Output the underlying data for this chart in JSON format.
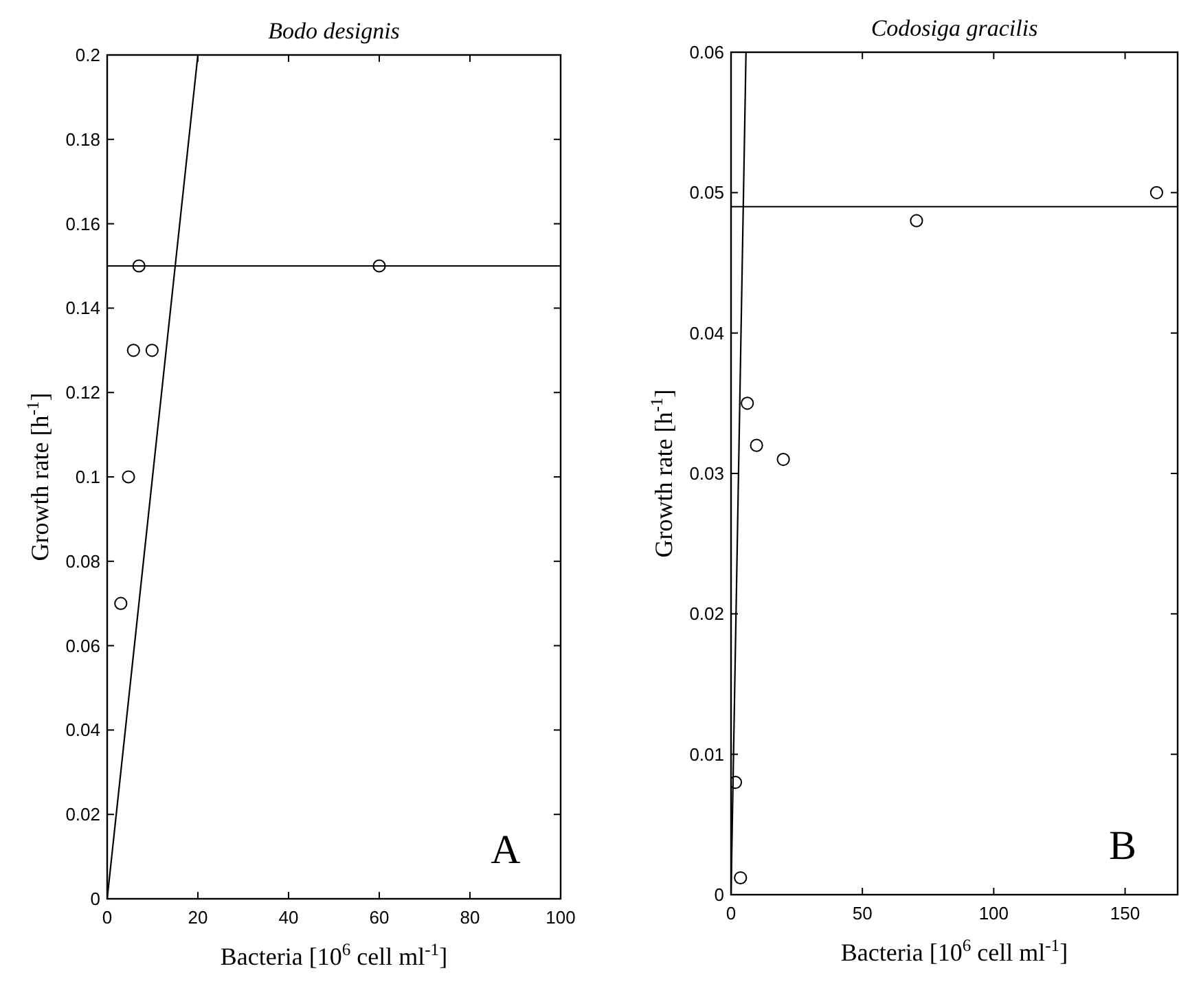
{
  "chart_data": [
    {
      "type": "scatter",
      "title": "Bodo designis",
      "xlabel": "Bacteria [10$^{6}$ cell ml$^{-1}$]",
      "ylabel": "Growth rate [h$^{-1}$]",
      "xlim": [
        0,
        100
      ],
      "ylim": [
        0,
        0.2
      ],
      "xticks": [
        0,
        20,
        40,
        60,
        80,
        100
      ],
      "yticks": [
        0,
        0.02,
        0.04,
        0.06,
        0.08,
        0.1,
        0.12,
        0.14,
        0.16,
        0.18,
        0.2
      ],
      "annotations": [
        "A"
      ],
      "series": [
        {
          "color": "#000000",
          "marker": "circle",
          "x": [
            3,
            4.7,
            5.8,
            7,
            9.9,
            60
          ],
          "values": [
            0.07,
            0.1,
            0.13,
            0.15,
            0.13,
            0.15
          ]
        },
        {
          "type": "line",
          "color": "#000000",
          "line_style": "solid",
          "x": [
            0,
            20
          ],
          "values": [
            0,
            0.2
          ]
        },
        {
          "type": "line",
          "color": "#000000",
          "line_style": "solid",
          "x": [
            0,
            100
          ],
          "values": [
            0.15,
            0.15
          ]
        }
      ]
    },
    {
      "type": "scatter",
      "title": "Codosiga gracilis",
      "xlabel": "Bacteria [10$^{6}$ cell ml$^{-1}$]",
      "ylabel": "Growth rate [h$^{-1}$]",
      "xlim": [
        0,
        170
      ],
      "ylim": [
        0,
        0.06
      ],
      "xticks": [
        0,
        50,
        100,
        150
      ],
      "yticks": [
        0,
        0.01,
        0.02,
        0.03,
        0.04,
        0.05,
        0.06
      ],
      "annotations": [
        "B"
      ],
      "series": [
        {
          "color": "#000000",
          "marker": "circle",
          "x": [
            1.7,
            3.6,
            6.2,
            9.7,
            19.9,
            70.6,
            162
          ],
          "values": [
            0.008,
            0.0012,
            0.035,
            0.032,
            0.031,
            0.048,
            0.05
          ]
        },
        {
          "type": "line",
          "color": "#000000",
          "line_style": "solid",
          "x": [
            0,
            5.7
          ],
          "values": [
            0,
            0.06
          ]
        },
        {
          "type": "line",
          "color": "#000000",
          "line_style": "solid",
          "x": [
            0,
            170
          ],
          "values": [
            0.049,
            0.049
          ]
        }
      ]
    }
  ]
}
